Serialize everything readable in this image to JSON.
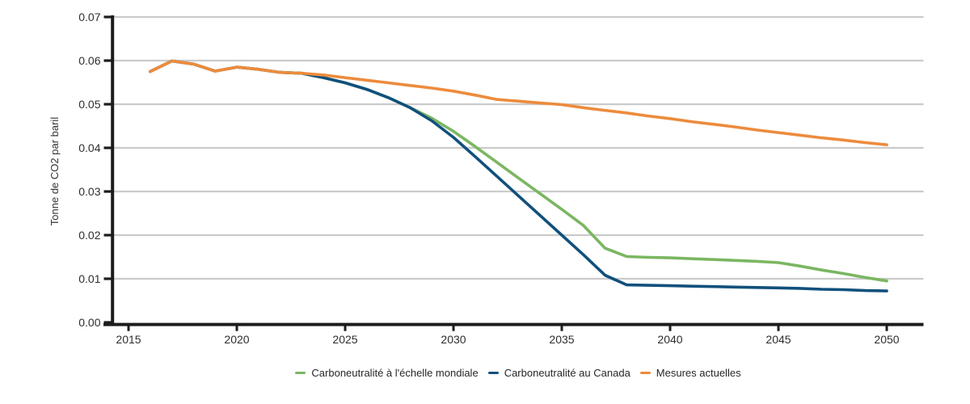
{
  "styles": {
    "grid_color": "#CBCBCB",
    "axis_color": "#1C1C1C",
    "tick_label_color": "#2E2E2E",
    "legend_text_color": "#262626",
    "background": "#FFFFFF"
  },
  "chart_data": {
    "type": "line",
    "title": "",
    "xlabel": "",
    "ylabel": "Tonne de CO2 par baril",
    "ylim": [
      0,
      0.07
    ],
    "xlim": [
      2015,
      2051.7
    ],
    "grid": "horizontal",
    "legend_position": "bottom-center",
    "x_ticks": [
      "2015",
      "2020",
      "2025",
      "2030",
      "2035",
      "2040",
      "2045",
      "2050"
    ],
    "y_ticks": [
      "0.00",
      "0.01",
      "0.02",
      "0.03",
      "0.04",
      "0.05",
      "0.06",
      "0.07"
    ],
    "x": [
      2016,
      2017,
      2018,
      2019,
      2020,
      2021,
      2022,
      2023,
      2024,
      2025,
      2026,
      2027,
      2028,
      2029,
      2030,
      2031,
      2032,
      2033,
      2034,
      2035,
      2036,
      2037,
      2038,
      2039,
      2040,
      2041,
      2042,
      2043,
      2044,
      2045,
      2046,
      2047,
      2048,
      2049,
      2050
    ],
    "series": [
      {
        "name": "Carboneutralité à l'échelle mondiale",
        "color": "#7BB662",
        "values": [
          0.0575,
          0.0599,
          0.0592,
          0.0576,
          0.0585,
          0.058,
          0.0573,
          0.0571,
          0.0561,
          0.0549,
          0.0534,
          0.0515,
          0.0492,
          0.0468,
          0.0438,
          0.0403,
          0.0367,
          0.0331,
          0.0295,
          0.0259,
          0.0222,
          0.017,
          0.0151,
          0.0149,
          0.0148,
          0.0146,
          0.0144,
          0.0142,
          0.014,
          0.0137,
          0.0129,
          0.012,
          0.0112,
          0.0103,
          0.0095
        ]
      },
      {
        "name": "Carboneutralité au Canada",
        "color": "#11507C",
        "values": [
          0.0575,
          0.0599,
          0.0592,
          0.0576,
          0.0585,
          0.058,
          0.0573,
          0.0571,
          0.0561,
          0.0549,
          0.0534,
          0.0515,
          0.0492,
          0.0462,
          0.0424,
          0.038,
          0.0335,
          0.029,
          0.0245,
          0.02,
          0.0155,
          0.0108,
          0.0086,
          0.0085,
          0.0084,
          0.0083,
          0.0082,
          0.0081,
          0.008,
          0.0079,
          0.0078,
          0.0076,
          0.0075,
          0.0073,
          0.0072
        ]
      },
      {
        "name": "Mesures actuelles",
        "color": "#ED8B3C",
        "values": [
          0.0575,
          0.0599,
          0.0592,
          0.0576,
          0.0585,
          0.058,
          0.0573,
          0.0571,
          0.0567,
          0.0561,
          0.0555,
          0.0549,
          0.0543,
          0.0537,
          0.053,
          0.0521,
          0.0511,
          0.0507,
          0.0503,
          0.0499,
          0.0492,
          0.0486,
          0.048,
          0.0473,
          0.0467,
          0.046,
          0.0454,
          0.0448,
          0.0441,
          0.0435,
          0.0429,
          0.0423,
          0.0418,
          0.0412,
          0.0407
        ]
      }
    ]
  }
}
